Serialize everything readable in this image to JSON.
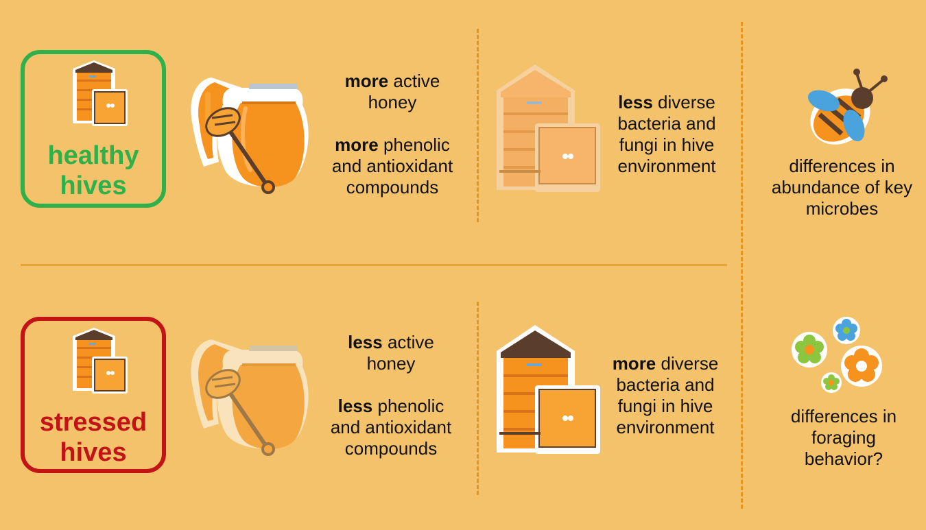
{
  "colors": {
    "background": "#f3c26b",
    "healthy_green": "#2eb04b",
    "stressed_red": "#c21416",
    "honey_orange": "#f6921e",
    "hive_brown": "#5a3d2b",
    "dash_orange": "#e8951e"
  },
  "rows": [
    {
      "status": {
        "line1": "healthy",
        "line2": "hives"
      },
      "honey_activity": {
        "qualifier": "more",
        "rest1": " active",
        "rest2": "honey"
      },
      "compounds": {
        "qualifier": "more",
        "rest1": " phenolic",
        "rest2": "and antioxidant",
        "rest3": "compounds"
      },
      "microbes": {
        "qualifier": "less",
        "rest1": " diverse",
        "rest2": "bacteria and",
        "rest3": "fungi in hive",
        "rest4": "environment"
      }
    },
    {
      "status": {
        "line1": "stressed",
        "line2": "hives"
      },
      "honey_activity": {
        "qualifier": "less",
        "rest1": " active",
        "rest2": "honey"
      },
      "compounds": {
        "qualifier": "less",
        "rest1": " phenolic",
        "rest2": "and antioxidant",
        "rest3": "compounds"
      },
      "microbes": {
        "qualifier": "more",
        "rest1": " diverse",
        "rest2": "bacteria and",
        "rest3": "fungi in hive",
        "rest4": "environment"
      }
    }
  ],
  "side_notes": {
    "abundance": {
      "line1": "differences in",
      "line2": "abundance of key",
      "line3": "microbes"
    },
    "foraging": {
      "line1": "differences in",
      "line2": "foraging",
      "line3": "behavior?"
    }
  },
  "icons": {
    "small_hive": "beehive-icon",
    "honey_jar": "honey-jar-icon",
    "large_hive": "beehive-icon",
    "bee": "bee-icon",
    "flowers": "flower-icon"
  }
}
